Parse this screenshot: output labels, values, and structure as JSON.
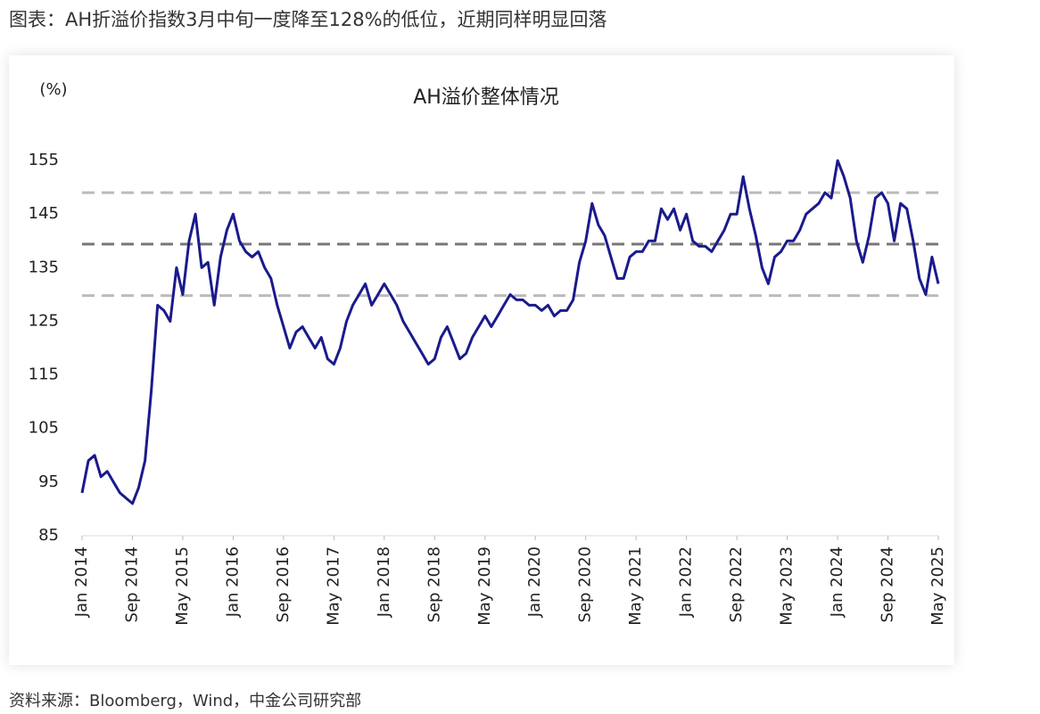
{
  "header": {
    "title": "图表：AH折溢价指数3月中旬一度降至128%的低位，近期同样明显回落"
  },
  "chart_data": {
    "type": "line",
    "title": "AH溢价整体情况",
    "y_unit": "(%)",
    "x": [
      "2014-01",
      "2014-02",
      "2014-03",
      "2014-04",
      "2014-05",
      "2014-06",
      "2014-07",
      "2014-08",
      "2014-09",
      "2014-10",
      "2014-11",
      "2014-12",
      "2015-01",
      "2015-02",
      "2015-03",
      "2015-04",
      "2015-05",
      "2015-06",
      "2015-07",
      "2015-08",
      "2015-09",
      "2015-10",
      "2015-11",
      "2015-12",
      "2016-01",
      "2016-02",
      "2016-03",
      "2016-04",
      "2016-05",
      "2016-06",
      "2016-07",
      "2016-08",
      "2016-09",
      "2016-10",
      "2016-11",
      "2016-12",
      "2017-01",
      "2017-02",
      "2017-03",
      "2017-04",
      "2017-05",
      "2017-06",
      "2017-07",
      "2017-08",
      "2017-09",
      "2017-10",
      "2017-11",
      "2017-12",
      "2018-01",
      "2018-02",
      "2018-03",
      "2018-04",
      "2018-05",
      "2018-06",
      "2018-07",
      "2018-08",
      "2018-09",
      "2018-10",
      "2018-11",
      "2018-12",
      "2019-01",
      "2019-02",
      "2019-03",
      "2019-04",
      "2019-05",
      "2019-06",
      "2019-07",
      "2019-08",
      "2019-09",
      "2019-10",
      "2019-11",
      "2019-12",
      "2020-01",
      "2020-02",
      "2020-03",
      "2020-04",
      "2020-05",
      "2020-06",
      "2020-07",
      "2020-08",
      "2020-09",
      "2020-10",
      "2020-11",
      "2020-12",
      "2021-01",
      "2021-02",
      "2021-03",
      "2021-04",
      "2021-05",
      "2021-06",
      "2021-07",
      "2021-08",
      "2021-09",
      "2021-10",
      "2021-11",
      "2021-12",
      "2022-01",
      "2022-02",
      "2022-03",
      "2022-04",
      "2022-05",
      "2022-06",
      "2022-07",
      "2022-08",
      "2022-09",
      "2022-10",
      "2022-11",
      "2022-12",
      "2023-01",
      "2023-02",
      "2023-03",
      "2023-04",
      "2023-05",
      "2023-06",
      "2023-07",
      "2023-08",
      "2023-09",
      "2023-10",
      "2023-11",
      "2023-12",
      "2024-01",
      "2024-02",
      "2024-03",
      "2024-04",
      "2024-05",
      "2024-06",
      "2024-07",
      "2024-08",
      "2024-09",
      "2024-10",
      "2024-11",
      "2024-12",
      "2025-01",
      "2025-02",
      "2025-03",
      "2025-04",
      "2025-05"
    ],
    "series": [
      {
        "name": "AH溢价",
        "color": "#1a1a8c",
        "values": [
          93,
          99,
          100,
          96,
          97,
          95,
          93,
          92,
          91,
          94,
          99,
          112,
          128,
          127,
          125,
          135,
          130,
          140,
          145,
          135,
          136,
          128,
          137,
          142,
          145,
          140,
          138,
          137,
          138,
          135,
          133,
          128,
          124,
          120,
          123,
          124,
          122,
          120,
          122,
          118,
          117,
          120,
          125,
          128,
          130,
          132,
          128,
          130,
          132,
          130,
          128,
          125,
          123,
          121,
          119,
          117,
          118,
          122,
          124,
          121,
          118,
          119,
          122,
          124,
          126,
          124,
          126,
          128,
          130,
          129,
          129,
          128,
          128,
          127,
          128,
          126,
          127,
          127,
          129,
          136,
          140,
          147,
          143,
          141,
          137,
          133,
          133,
          137,
          138,
          138,
          140,
          140,
          146,
          144,
          146,
          142,
          145,
          140,
          139,
          139,
          138,
          140,
          142,
          145,
          145,
          152,
          146,
          141,
          135,
          132,
          137,
          138,
          140,
          140,
          142,
          145,
          146,
          147,
          149,
          148,
          155,
          152,
          148,
          140,
          136,
          141,
          148,
          149,
          147,
          140,
          147,
          146,
          140,
          133,
          130,
          137,
          132
        ]
      }
    ],
    "reference_lines": [
      {
        "value": 149,
        "color": "#bbbbbb"
      },
      {
        "value": 139.4,
        "color": "#777777"
      },
      {
        "value": 129.8,
        "color": "#bbbbbb"
      }
    ],
    "xlim": [
      "2014-01",
      "2025-05"
    ],
    "xticks": [
      {
        "value": "2014-01",
        "label": "Jan 2014"
      },
      {
        "value": "2014-09",
        "label": "Sep 2014"
      },
      {
        "value": "2015-05",
        "label": "May 2015"
      },
      {
        "value": "2016-01",
        "label": "Jan 2016"
      },
      {
        "value": "2016-09",
        "label": "Sep 2016"
      },
      {
        "value": "2017-05",
        "label": "May 2017"
      },
      {
        "value": "2018-01",
        "label": "Jan 2018"
      },
      {
        "value": "2018-09",
        "label": "Sep 2018"
      },
      {
        "value": "2019-05",
        "label": "May 2019"
      },
      {
        "value": "2020-01",
        "label": "Jan 2020"
      },
      {
        "value": "2020-09",
        "label": "Sep 2020"
      },
      {
        "value": "2021-05",
        "label": "May 2021"
      },
      {
        "value": "2022-01",
        "label": "Jan 2022"
      },
      {
        "value": "2022-09",
        "label": "Sep 2022"
      },
      {
        "value": "2023-05",
        "label": "May 2023"
      },
      {
        "value": "2024-01",
        "label": "Jan 2024"
      },
      {
        "value": "2024-09",
        "label": "Sep 2024"
      },
      {
        "value": "2025-05",
        "label": "May 2025"
      }
    ],
    "ylim": [
      85,
      160
    ],
    "yticks": [
      85,
      95,
      105,
      115,
      125,
      135,
      145,
      155
    ],
    "grid": false
  },
  "footer": {
    "source": "资料来源：Bloomberg，Wind，中金公司研究部"
  }
}
